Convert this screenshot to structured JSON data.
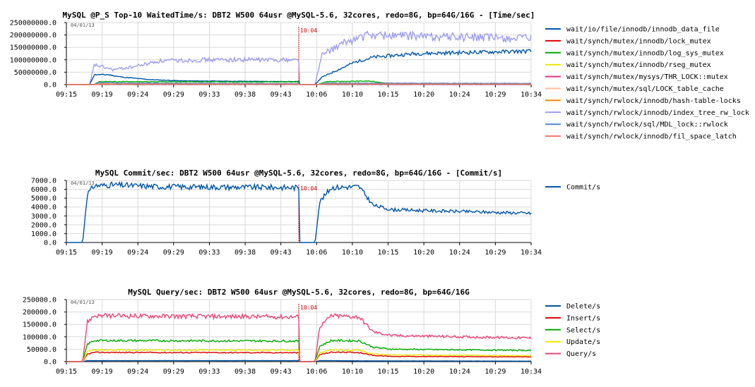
{
  "chart_data": [
    {
      "type": "line",
      "title": "MySQL @P_S Top-10 WaitedTime/s: DBT2 W500 64usr @MySQL-5.6, 32cores, redo=8G, bp=64G/16G - [Time/sec]",
      "date_label": "04/01/13",
      "marker_label": "10:04",
      "ylim": [
        0,
        250000000
      ],
      "y_ticks": [
        "0.0",
        "50000000.0",
        "100000000.0",
        "150000000.0",
        "200000000.0",
        "250000000.0"
      ],
      "x_ticks": [
        "09:15",
        "09:19",
        "09:24",
        "09:29",
        "09:33",
        "09:38",
        "09:43",
        "10:06",
        "10:10",
        "10:15",
        "10:20",
        "10:24",
        "10:29",
        "10:34"
      ],
      "series": [
        {
          "name": "wait/io/file/innodb/innodb_data_file",
          "color": "#0055aa",
          "profile": [
            [
              0,
              0
            ],
            [
              0.05,
              0
            ],
            [
              0.06,
              40000000
            ],
            [
              0.09,
              40000000
            ],
            [
              0.12,
              30000000
            ],
            [
              0.18,
              20000000
            ],
            [
              0.25,
              15000000
            ],
            [
              0.5,
              12000000
            ],
            [
              0.5,
              0
            ],
            [
              0.535,
              0
            ],
            [
              0.55,
              30000000
            ],
            [
              0.62,
              90000000
            ],
            [
              0.66,
              110000000
            ],
            [
              0.75,
              125000000
            ],
            [
              1,
              135000000
            ]
          ],
          "noise": 0.06,
          "seed": 11
        },
        {
          "name": "wait/synch/mutex/innodb/lock_mutex",
          "color": "#dd0000",
          "profile": [
            [
              0,
              0
            ],
            [
              0.06,
              0
            ],
            [
              0.07,
              2000000
            ],
            [
              0.5,
              2000000
            ],
            [
              0.5,
              0
            ],
            [
              0.54,
              0
            ],
            [
              0.55,
              3000000
            ],
            [
              1,
              2000000
            ]
          ],
          "noise": 0.3,
          "seed": 12
        },
        {
          "name": "wait/synch/mutex/innodb/log_sys_mutex",
          "color": "#00aa00",
          "profile": [
            [
              0,
              0
            ],
            [
              0.06,
              0
            ],
            [
              0.07,
              12000000
            ],
            [
              0.5,
              11000000
            ],
            [
              0.5,
              0
            ],
            [
              0.54,
              0
            ],
            [
              0.56,
              12000000
            ],
            [
              0.65,
              14000000
            ],
            [
              0.7,
              4000000
            ],
            [
              1,
              3000000
            ]
          ],
          "noise": 0.12,
          "seed": 13
        },
        {
          "name": "wait/synch/mutex/innodb/rseg_mutex",
          "color": "#e8e800",
          "profile": [
            [
              0,
              0
            ],
            [
              0.06,
              0
            ],
            [
              0.07,
              3000000
            ],
            [
              0.5,
              3000000
            ],
            [
              0.5,
              0
            ],
            [
              0.54,
              0
            ],
            [
              0.55,
              3000000
            ],
            [
              1,
              2500000
            ]
          ],
          "noise": 0.3,
          "seed": 14
        },
        {
          "name": "wait/synch/mutex/mysys/THR_LOCK::mutex",
          "color": "#dd3388",
          "profile": [
            [
              0,
              0
            ],
            [
              0.06,
              0
            ],
            [
              0.07,
              1500000
            ],
            [
              0.5,
              1500000
            ],
            [
              0.5,
              0
            ],
            [
              0.54,
              0
            ],
            [
              0.55,
              1500000
            ],
            [
              1,
              1500000
            ]
          ],
          "noise": 0.3,
          "seed": 15
        },
        {
          "name": "wait/synch/mutex/sql/LOCK_table_cache",
          "color": "#ffbb99",
          "profile": [
            [
              0,
              0
            ],
            [
              0.06,
              0
            ],
            [
              0.07,
              2500000
            ],
            [
              0.5,
              2500000
            ],
            [
              0.5,
              0
            ],
            [
              0.54,
              0
            ],
            [
              0.55,
              3000000
            ],
            [
              1,
              3000000
            ]
          ],
          "noise": 0.3,
          "seed": 16
        },
        {
          "name": "wait/synch/rwlock/innodb/hash-table-locks",
          "color": "#ee8800",
          "profile": [
            [
              0,
              0
            ],
            [
              0.06,
              0
            ],
            [
              0.07,
              2000000
            ],
            [
              0.5,
              2000000
            ],
            [
              0.5,
              0
            ],
            [
              0.54,
              0
            ],
            [
              0.55,
              2500000
            ],
            [
              1,
              2500000
            ]
          ],
          "noise": 0.3,
          "seed": 17
        },
        {
          "name": "wait/synch/rwlock/innodb/index_tree_rw_lock",
          "color": "#9999ee",
          "profile": [
            [
              0,
              0
            ],
            [
              0.05,
              0
            ],
            [
              0.06,
              80000000
            ],
            [
              0.1,
              60000000
            ],
            [
              0.14,
              70000000
            ],
            [
              0.2,
              95000000
            ],
            [
              0.3,
              100000000
            ],
            [
              0.5,
              100000000
            ],
            [
              0.5,
              0
            ],
            [
              0.535,
              0
            ],
            [
              0.55,
              120000000
            ],
            [
              0.6,
              170000000
            ],
            [
              0.65,
              200000000
            ],
            [
              1,
              185000000
            ]
          ],
          "noise": 0.09,
          "seed": 18
        },
        {
          "name": "wait/synch/rwlock/sql/MDL_lock::rwlock",
          "color": "#5588cc",
          "profile": [
            [
              0,
              0
            ],
            [
              0.06,
              0
            ],
            [
              0.07,
              8000000
            ],
            [
              0.15,
              6000000
            ],
            [
              0.5,
              4000000
            ],
            [
              0.5,
              0
            ],
            [
              0.54,
              0
            ],
            [
              0.56,
              6000000
            ],
            [
              1,
              5000000
            ]
          ],
          "noise": 0.2,
          "seed": 19
        },
        {
          "name": "wait/synch/rwlock/innodb/fil_space_latch",
          "color": "#ee7766",
          "profile": [
            [
              0,
              0
            ],
            [
              0.06,
              0
            ],
            [
              0.07,
              2000000
            ],
            [
              0.5,
              2000000
            ],
            [
              0.5,
              0
            ],
            [
              0.54,
              0
            ],
            [
              0.55,
              2000000
            ],
            [
              1,
              2000000
            ]
          ],
          "noise": 0.3,
          "seed": 20
        }
      ]
    },
    {
      "type": "line",
      "title": "MySQL Commit/sec: DBT2 W500 64usr @MySQL-5.6, 32cores, redo=8G, bp=64G/16G - [Commit/s]",
      "date_label": "04/01/13",
      "marker_label": "10:04",
      "ylim": [
        0,
        7000
      ],
      "y_ticks": [
        "0.0",
        "1000.0",
        "2000.0",
        "3000.0",
        "4000.0",
        "5000.0",
        "6000.0",
        "7000.0"
      ],
      "x_ticks": [
        "09:15",
        "09:19",
        "09:24",
        "09:29",
        "09:33",
        "09:38",
        "09:43",
        "10:06",
        "10:10",
        "10:15",
        "10:20",
        "10:24",
        "10:29",
        "10:34"
      ],
      "series": [
        {
          "name": "Commit/s",
          "color": "#0055aa",
          "profile": [
            [
              0,
              0
            ],
            [
              0.035,
              0
            ],
            [
              0.045,
              5500
            ],
            [
              0.06,
              6400
            ],
            [
              0.1,
              6500
            ],
            [
              0.2,
              6300
            ],
            [
              0.5,
              6200
            ],
            [
              0.5,
              0
            ],
            [
              0.535,
              0
            ],
            [
              0.545,
              4600
            ],
            [
              0.57,
              6200
            ],
            [
              0.63,
              6300
            ],
            [
              0.66,
              4200
            ],
            [
              0.7,
              3700
            ],
            [
              1,
              3300
            ]
          ],
          "noise": 0.05,
          "seed": 31
        }
      ]
    },
    {
      "type": "line",
      "title": "MySQL Query/sec: DBT2 W500 64usr @MySQL-5.6, 32cores, redo=8G, bp=64G/16G",
      "date_label": "04/01/13",
      "marker_label": "10:04",
      "ylim": [
        0,
        250000
      ],
      "y_ticks": [
        "0.0",
        "50000.0",
        "100000.0",
        "150000.0",
        "200000.0",
        "250000.0"
      ],
      "x_ticks": [
        "09:15",
        "09:19",
        "09:24",
        "09:29",
        "09:33",
        "09:38",
        "09:43",
        "10:06",
        "10:10",
        "10:15",
        "10:20",
        "10:24",
        "10:29",
        "10:34"
      ],
      "series": [
        {
          "name": "Delete/s",
          "color": "#0055aa",
          "profile": [
            [
              0,
              0
            ],
            [
              0.035,
              0
            ],
            [
              0.045,
              4000
            ],
            [
              0.5,
              4000
            ],
            [
              0.5,
              0
            ],
            [
              0.535,
              0
            ],
            [
              0.545,
              4000
            ],
            [
              0.66,
              3000
            ],
            [
              1,
              2000
            ]
          ],
          "noise": 0.1,
          "seed": 41
        },
        {
          "name": "Insert/s",
          "color": "#dd0000",
          "profile": [
            [
              0,
              0
            ],
            [
              0.035,
              0
            ],
            [
              0.045,
              30000
            ],
            [
              0.06,
              37000
            ],
            [
              0.5,
              36000
            ],
            [
              0.5,
              0
            ],
            [
              0.535,
              0
            ],
            [
              0.545,
              28000
            ],
            [
              0.57,
              38000
            ],
            [
              0.63,
              37000
            ],
            [
              0.66,
              25000
            ],
            [
              0.7,
              21000
            ],
            [
              1,
              19000
            ]
          ],
          "noise": 0.06,
          "seed": 42
        },
        {
          "name": "Select/s",
          "color": "#00aa00",
          "profile": [
            [
              0,
              0
            ],
            [
              0.035,
              0
            ],
            [
              0.045,
              70000
            ],
            [
              0.06,
              85000
            ],
            [
              0.5,
              83000
            ],
            [
              0.5,
              0
            ],
            [
              0.535,
              0
            ],
            [
              0.545,
              62000
            ],
            [
              0.57,
              85000
            ],
            [
              0.63,
              84000
            ],
            [
              0.66,
              58000
            ],
            [
              0.7,
              50000
            ],
            [
              1,
              45000
            ]
          ],
          "noise": 0.05,
          "seed": 43
        },
        {
          "name": "Update/s",
          "color": "#e8e800",
          "profile": [
            [
              0,
              0
            ],
            [
              0.035,
              0
            ],
            [
              0.045,
              40000
            ],
            [
              0.06,
              47000
            ],
            [
              0.5,
              46000
            ],
            [
              0.5,
              0
            ],
            [
              0.535,
              0
            ],
            [
              0.545,
              35000
            ],
            [
              0.57,
              47000
            ],
            [
              0.63,
              46000
            ],
            [
              0.66,
              31000
            ],
            [
              0.7,
              27000
            ],
            [
              1,
              24000
            ]
          ],
          "noise": 0.06,
          "seed": 44
        },
        {
          "name": "Query/s",
          "color": "#ee4477",
          "profile": [
            [
              0,
              0
            ],
            [
              0.035,
              0
            ],
            [
              0.045,
              160000
            ],
            [
              0.06,
              185000
            ],
            [
              0.5,
              180000
            ],
            [
              0.5,
              0
            ],
            [
              0.535,
              0
            ],
            [
              0.545,
              140000
            ],
            [
              0.57,
              185000
            ],
            [
              0.63,
              180000
            ],
            [
              0.66,
              120000
            ],
            [
              0.7,
              105000
            ],
            [
              1,
              95000
            ]
          ],
          "noise": 0.05,
          "seed": 45
        }
      ]
    }
  ]
}
